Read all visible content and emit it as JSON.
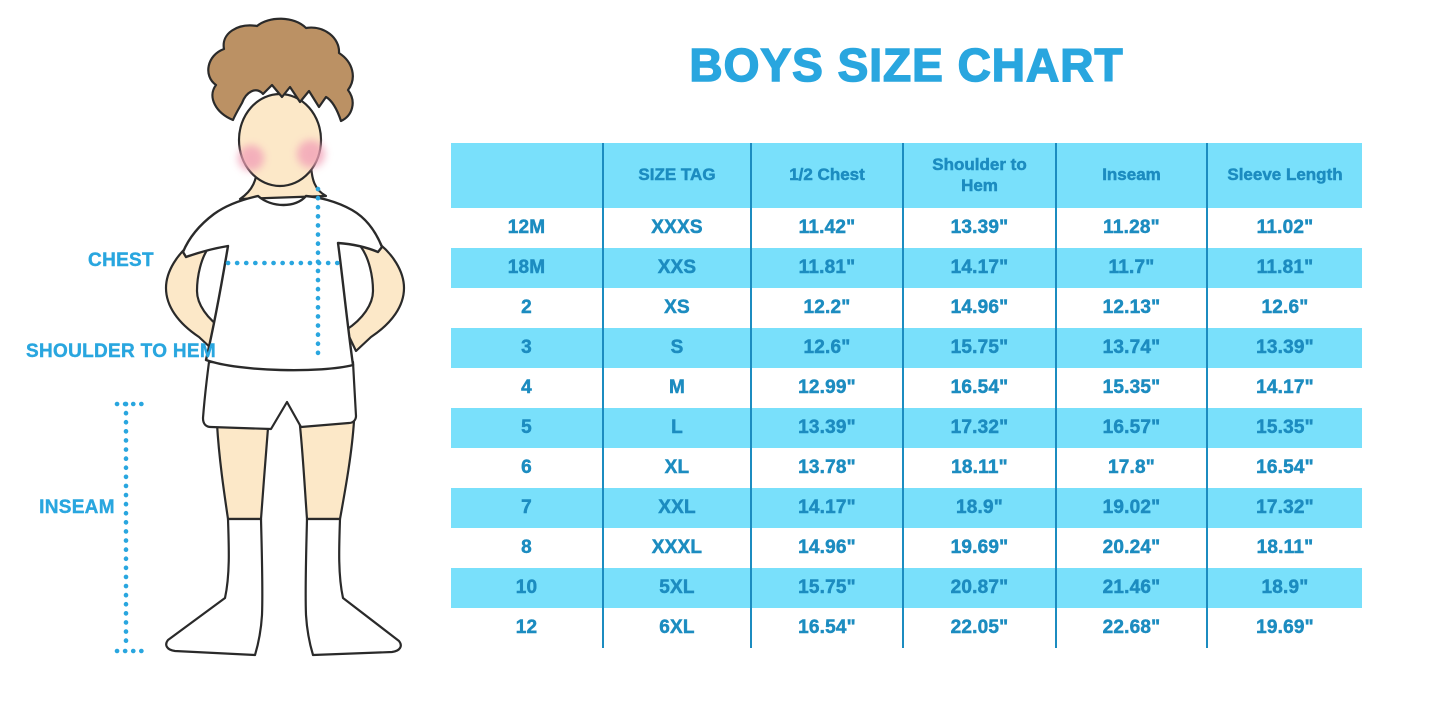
{
  "title": "BOYS SIZE CHART",
  "figure": {
    "description": "cartoon-boy-with-measurement-guides",
    "labels": {
      "chest": "CHEST",
      "shoulder_to_hem": "SHOULDER TO HEM",
      "inseam": "INSEAM"
    }
  },
  "colors": {
    "accent_blue": "#29A6DF",
    "table_text": "#1C8CC0",
    "row_blue": "#79E0FB",
    "skin": "#FCE8C8",
    "hair": "#BB9164",
    "blush": "#F2A2B8"
  },
  "chart_data": {
    "type": "table",
    "title": "BOYS SIZE CHART",
    "columns": [
      "",
      "SIZE TAG",
      "1/2 Chest",
      "Shoulder to Hem",
      "Inseam",
      "Sleeve Length"
    ],
    "rows": [
      [
        "12M",
        "XXXS",
        "11.42\"",
        "13.39\"",
        "11.28\"",
        "11.02\""
      ],
      [
        "18M",
        "XXS",
        "11.81\"",
        "14.17\"",
        "11.7\"",
        "11.81\""
      ],
      [
        "2",
        "XS",
        "12.2\"",
        "14.96\"",
        "12.13\"",
        "12.6\""
      ],
      [
        "3",
        "S",
        "12.6\"",
        "15.75\"",
        "13.74\"",
        "13.39\""
      ],
      [
        "4",
        "M",
        "12.99\"",
        "16.54\"",
        "15.35\"",
        "14.17\""
      ],
      [
        "5",
        "L",
        "13.39\"",
        "17.32\"",
        "16.57\"",
        "15.35\""
      ],
      [
        "6",
        "XL",
        "13.78\"",
        "18.11\"",
        "17.8\"",
        "16.54\""
      ],
      [
        "7",
        "XXL",
        "14.17\"",
        "18.9\"",
        "19.02\"",
        "17.32\""
      ],
      [
        "8",
        "XXXL",
        "14.96\"",
        "19.69\"",
        "20.24\"",
        "18.11\""
      ],
      [
        "10",
        "5XL",
        "15.75\"",
        "20.87\"",
        "21.46\"",
        "18.9\""
      ],
      [
        "12",
        "6XL",
        "16.54\"",
        "22.05\"",
        "22.68\"",
        "19.69\""
      ]
    ]
  }
}
